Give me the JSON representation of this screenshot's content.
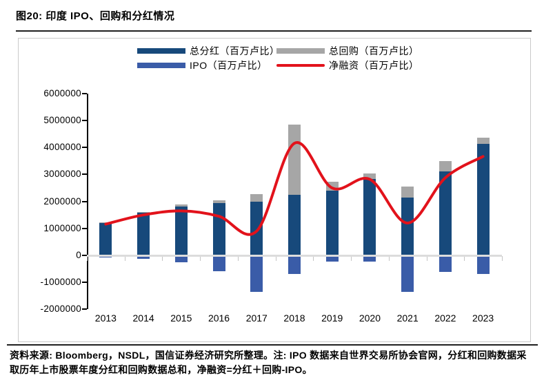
{
  "page": {
    "title": "图20: 印度 IPO、回购和分红情况",
    "source_note": "资料来源: Bloomberg，NSDL，国信证券经济研究所整理。注: IPO 数据来自世界交易所协会官网，分红和回购数据采取历年上市股票年度分红和回购数据总和，净融资=分红＋回购-IPO。"
  },
  "colors": {
    "dividend": "#17497B",
    "buyback": "#A6A6A6",
    "ipo": "#3A5CA8",
    "net": "#E2121B",
    "zero_line": "#DCDCDC",
    "axis": "#000000",
    "rule": "#1F1F1F"
  },
  "legend": [
    {
      "label": "总分红（百万卢比）",
      "type": "bar",
      "color_key": "dividend"
    },
    {
      "label": "总回购（百万卢比）",
      "type": "bar",
      "color_key": "buyback"
    },
    {
      "label": "IPO（百万卢比）",
      "type": "bar",
      "color_key": "ipo"
    },
    {
      "label": "净融资（百万卢比）",
      "type": "line",
      "color_key": "net"
    }
  ],
  "chart_data": {
    "type": "bar",
    "subtype": "stacked-bars-with-smoothed-line",
    "categories": [
      "2013",
      "2014",
      "2015",
      "2016",
      "2017",
      "2018",
      "2019",
      "2020",
      "2021",
      "2022",
      "2023"
    ],
    "series": [
      {
        "name": "总分红（百万卢比）",
        "type": "bar",
        "stack": "positive",
        "color_key": "dividend",
        "values": [
          1200000,
          1600000,
          1810000,
          1930000,
          1980000,
          2240000,
          2390000,
          2840000,
          2140000,
          3120000,
          4130000
        ]
      },
      {
        "name": "总回购（百万卢比）",
        "type": "bar",
        "stack": "positive",
        "color_key": "buyback",
        "values": [
          30000,
          20000,
          90000,
          110000,
          280000,
          2620000,
          340000,
          210000,
          410000,
          370000,
          240000
        ]
      },
      {
        "name": "IPO（百万卢比）",
        "type": "bar",
        "stack": "negative",
        "color_key": "ipo",
        "values": [
          -70000,
          -120000,
          -250000,
          -590000,
          -1360000,
          -700000,
          -230000,
          -230000,
          -1350000,
          -610000,
          -700000
        ]
      },
      {
        "name": "净融资（百万卢比）",
        "type": "line",
        "color_key": "net",
        "values": [
          1160000,
          1500000,
          1650000,
          1450000,
          900000,
          4160000,
          2500000,
          2820000,
          1200000,
          2880000,
          3670000
        ]
      }
    ],
    "y_tick_labels": [
      "6000000",
      "5000000",
      "4000000",
      "3000000",
      "2000000",
      "1000000",
      "0",
      "-1000000",
      "-2000000"
    ],
    "ylim": [
      -2000000,
      6000000
    ],
    "ytick_step": 1000000,
    "grid": false,
    "legend_position": "top-center",
    "note": "净融资=分红＋回购-IPO"
  }
}
